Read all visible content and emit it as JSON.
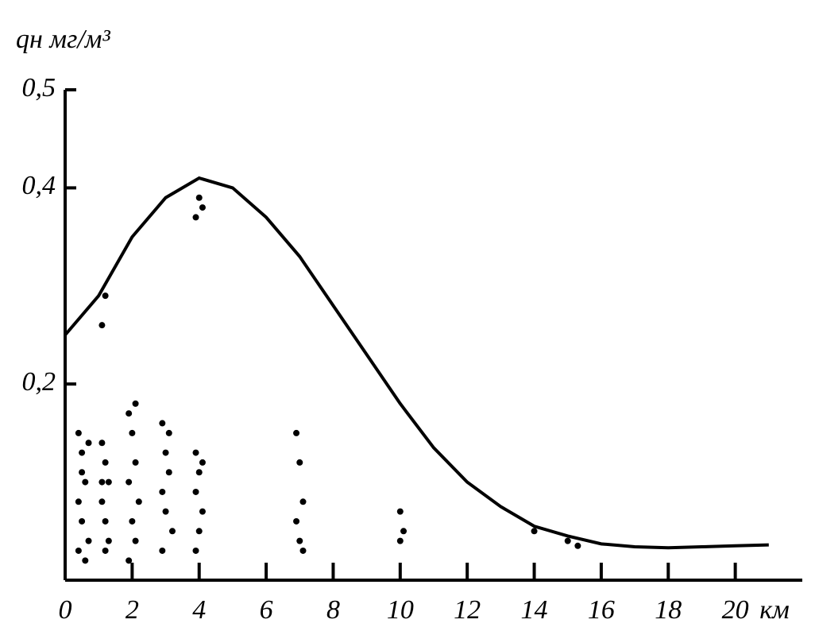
{
  "chart_data": {
    "type": "line",
    "y_label": "qн мг/м³",
    "x_label": "км",
    "xlim": [
      0,
      22
    ],
    "ylim": [
      0,
      0.5
    ],
    "xticks": [
      0,
      2,
      4,
      6,
      8,
      10,
      12,
      14,
      16,
      18,
      20
    ],
    "yticks": [
      {
        "value": 0.2,
        "label": "0,2"
      },
      {
        "value": 0.4,
        "label": "0,4"
      },
      {
        "value": 0.5,
        "label": "0,5"
      }
    ],
    "series": [
      {
        "type": "line",
        "color": "#000000",
        "x": [
          0,
          1,
          2,
          3,
          4,
          5,
          6,
          7,
          8,
          9,
          10,
          11,
          12,
          13,
          14,
          15,
          16,
          17,
          18,
          19,
          20,
          21
        ],
        "values": [
          0.25,
          0.29,
          0.35,
          0.39,
          0.41,
          0.4,
          0.37,
          0.33,
          0.28,
          0.23,
          0.18,
          0.135,
          0.1,
          0.075,
          0.055,
          0.045,
          0.037,
          0.034,
          0.033,
          0.034,
          0.035,
          0.036
        ]
      },
      {
        "type": "scatter",
        "color": "#000000",
        "x": [
          0.4,
          0.5,
          0.6,
          0.4,
          0.5,
          0.7,
          0.4,
          0.6,
          0.5,
          0.7,
          1.1,
          1.2,
          1.3,
          1.1,
          1.2,
          1.3,
          1.2,
          1.1,
          1.9,
          2.0,
          2.1,
          1.9,
          2.2,
          2.0,
          2.1,
          1.9,
          2.1,
          2.9,
          3.0,
          3.1,
          2.9,
          3.0,
          3.2,
          2.9,
          3.1,
          3.9,
          4.0,
          3.9,
          4.1,
          4.0,
          3.9,
          4.1,
          3.9,
          4.0,
          4.1,
          6.9,
          7.0,
          7.1,
          6.9,
          7.0,
          7.1,
          10.0,
          10.1,
          10.0,
          14.0,
          15.0,
          15.3,
          1.1,
          1.2
        ],
        "values": [
          0.15,
          0.13,
          0.1,
          0.08,
          0.06,
          0.04,
          0.03,
          0.02,
          0.11,
          0.14,
          0.14,
          0.12,
          0.1,
          0.08,
          0.06,
          0.04,
          0.03,
          0.1,
          0.17,
          0.15,
          0.12,
          0.1,
          0.08,
          0.06,
          0.04,
          0.02,
          0.18,
          0.16,
          0.13,
          0.11,
          0.09,
          0.07,
          0.05,
          0.03,
          0.15,
          0.13,
          0.11,
          0.09,
          0.07,
          0.05,
          0.03,
          0.12,
          0.37,
          0.39,
          0.38,
          0.15,
          0.12,
          0.08,
          0.06,
          0.04,
          0.03,
          0.07,
          0.05,
          0.04,
          0.05,
          0.04,
          0.035,
          0.26,
          0.29
        ]
      }
    ]
  }
}
